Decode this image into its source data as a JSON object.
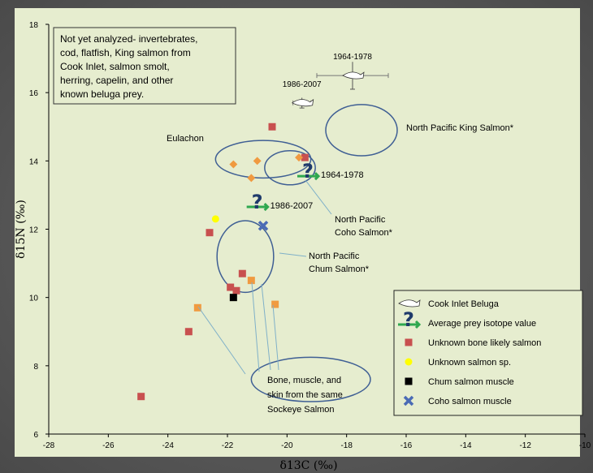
{
  "chart_data": {
    "type": "scatter",
    "xlabel": "δ13C (‰)",
    "ylabel": "δ15N (‰)",
    "xlim": [
      -28,
      -10
    ],
    "ylim": [
      6,
      18
    ],
    "xticks": [
      -28,
      -26,
      -24,
      -22,
      -20,
      -18,
      -16,
      -14,
      -12,
      -10
    ],
    "yticks": [
      6,
      8,
      10,
      12,
      14,
      16,
      18
    ],
    "grid": false,
    "note": [
      "Not yet analyzed- invertebrates,",
      "cod, flatfish, King salmon from",
      "Cook Inlet, salmon smolt,",
      "herring, capelin, and other",
      "known beluga prey."
    ],
    "series": [
      {
        "name": "Cook Inlet Beluga",
        "marker": "whale",
        "color": "#ffffff",
        "points": [
          {
            "x": -17.8,
            "y": 16.5,
            "label": "1964-1978",
            "xerr": 1.2,
            "yerr": 0.4
          },
          {
            "x": -19.5,
            "y": 15.7,
            "label": "1986-2007",
            "xerr": 0.3,
            "yerr": 0.15
          }
        ]
      },
      {
        "name": "Average prey isotope value",
        "marker": "question",
        "color": "#1f3a6b",
        "points": [
          {
            "x": -19.3,
            "y": 13.6,
            "label": "1964-1978"
          },
          {
            "x": -21.0,
            "y": 12.7,
            "label": "1986-2007"
          }
        ]
      },
      {
        "name": "Unknown  bone likely salmon",
        "marker": "square",
        "color": "#c8504f",
        "points": [
          {
            "x": -24.9,
            "y": 7.1
          },
          {
            "x": -23.3,
            "y": 9.0
          },
          {
            "x": -22.6,
            "y": 11.9
          },
          {
            "x": -21.9,
            "y": 10.3
          },
          {
            "x": -21.5,
            "y": 10.7
          },
          {
            "x": -20.5,
            "y": 15.0
          },
          {
            "x": -21.7,
            "y": 10.2
          },
          {
            "x": -19.4,
            "y": 14.1
          }
        ]
      },
      {
        "name": "Unknown salmon sp.",
        "marker": "circle",
        "color": "#ffff00",
        "points": [
          {
            "x": -22.4,
            "y": 12.3
          }
        ]
      },
      {
        "name": "Chum salmon muscle",
        "marker": "square",
        "color": "#000000",
        "points": [
          {
            "x": -21.8,
            "y": 10.0
          }
        ]
      },
      {
        "name": "Coho salmon muscle",
        "marker": "x",
        "color": "#4a6bb5",
        "points": [
          {
            "x": -20.8,
            "y": 12.1
          }
        ]
      },
      {
        "name": "",
        "marker": "square",
        "color": "#f09a40",
        "points": [
          {
            "x": -23.0,
            "y": 9.7
          },
          {
            "x": -21.2,
            "y": 10.5
          },
          {
            "x": -20.4,
            "y": 9.8
          }
        ]
      },
      {
        "name": "",
        "marker": "diamond",
        "color": "#f09a40",
        "points": [
          {
            "x": -21.8,
            "y": 13.9
          },
          {
            "x": -21.0,
            "y": 14.0
          },
          {
            "x": -21.2,
            "y": 13.5
          },
          {
            "x": -19.6,
            "y": 14.1
          }
        ]
      }
    ],
    "ellipses": [
      {
        "label": "North Pacific King Salmon*",
        "cx": -17.5,
        "cy": 14.9,
        "rx": 1.2,
        "ry": 0.75
      },
      {
        "label": "Eulachon",
        "cx": -20.8,
        "cy": 14.05,
        "rx": 1.6,
        "ry": 0.55
      },
      {
        "label": "North Pacific Coho Salmon*",
        "cx": -19.9,
        "cy": 13.8,
        "rx": 0.85,
        "ry": 0.5
      },
      {
        "label": "North Pacific Chum Salmon*",
        "cx": -21.4,
        "cy": 11.2,
        "rx": 0.95,
        "ry": 1.05
      },
      {
        "label": "Bone, muscle, and skin from the same Sockeye Salmon",
        "cx": -19.2,
        "cy": 7.6,
        "rx": 2.0,
        "ry": 0.65
      }
    ],
    "legend_position": "bottom-right"
  }
}
